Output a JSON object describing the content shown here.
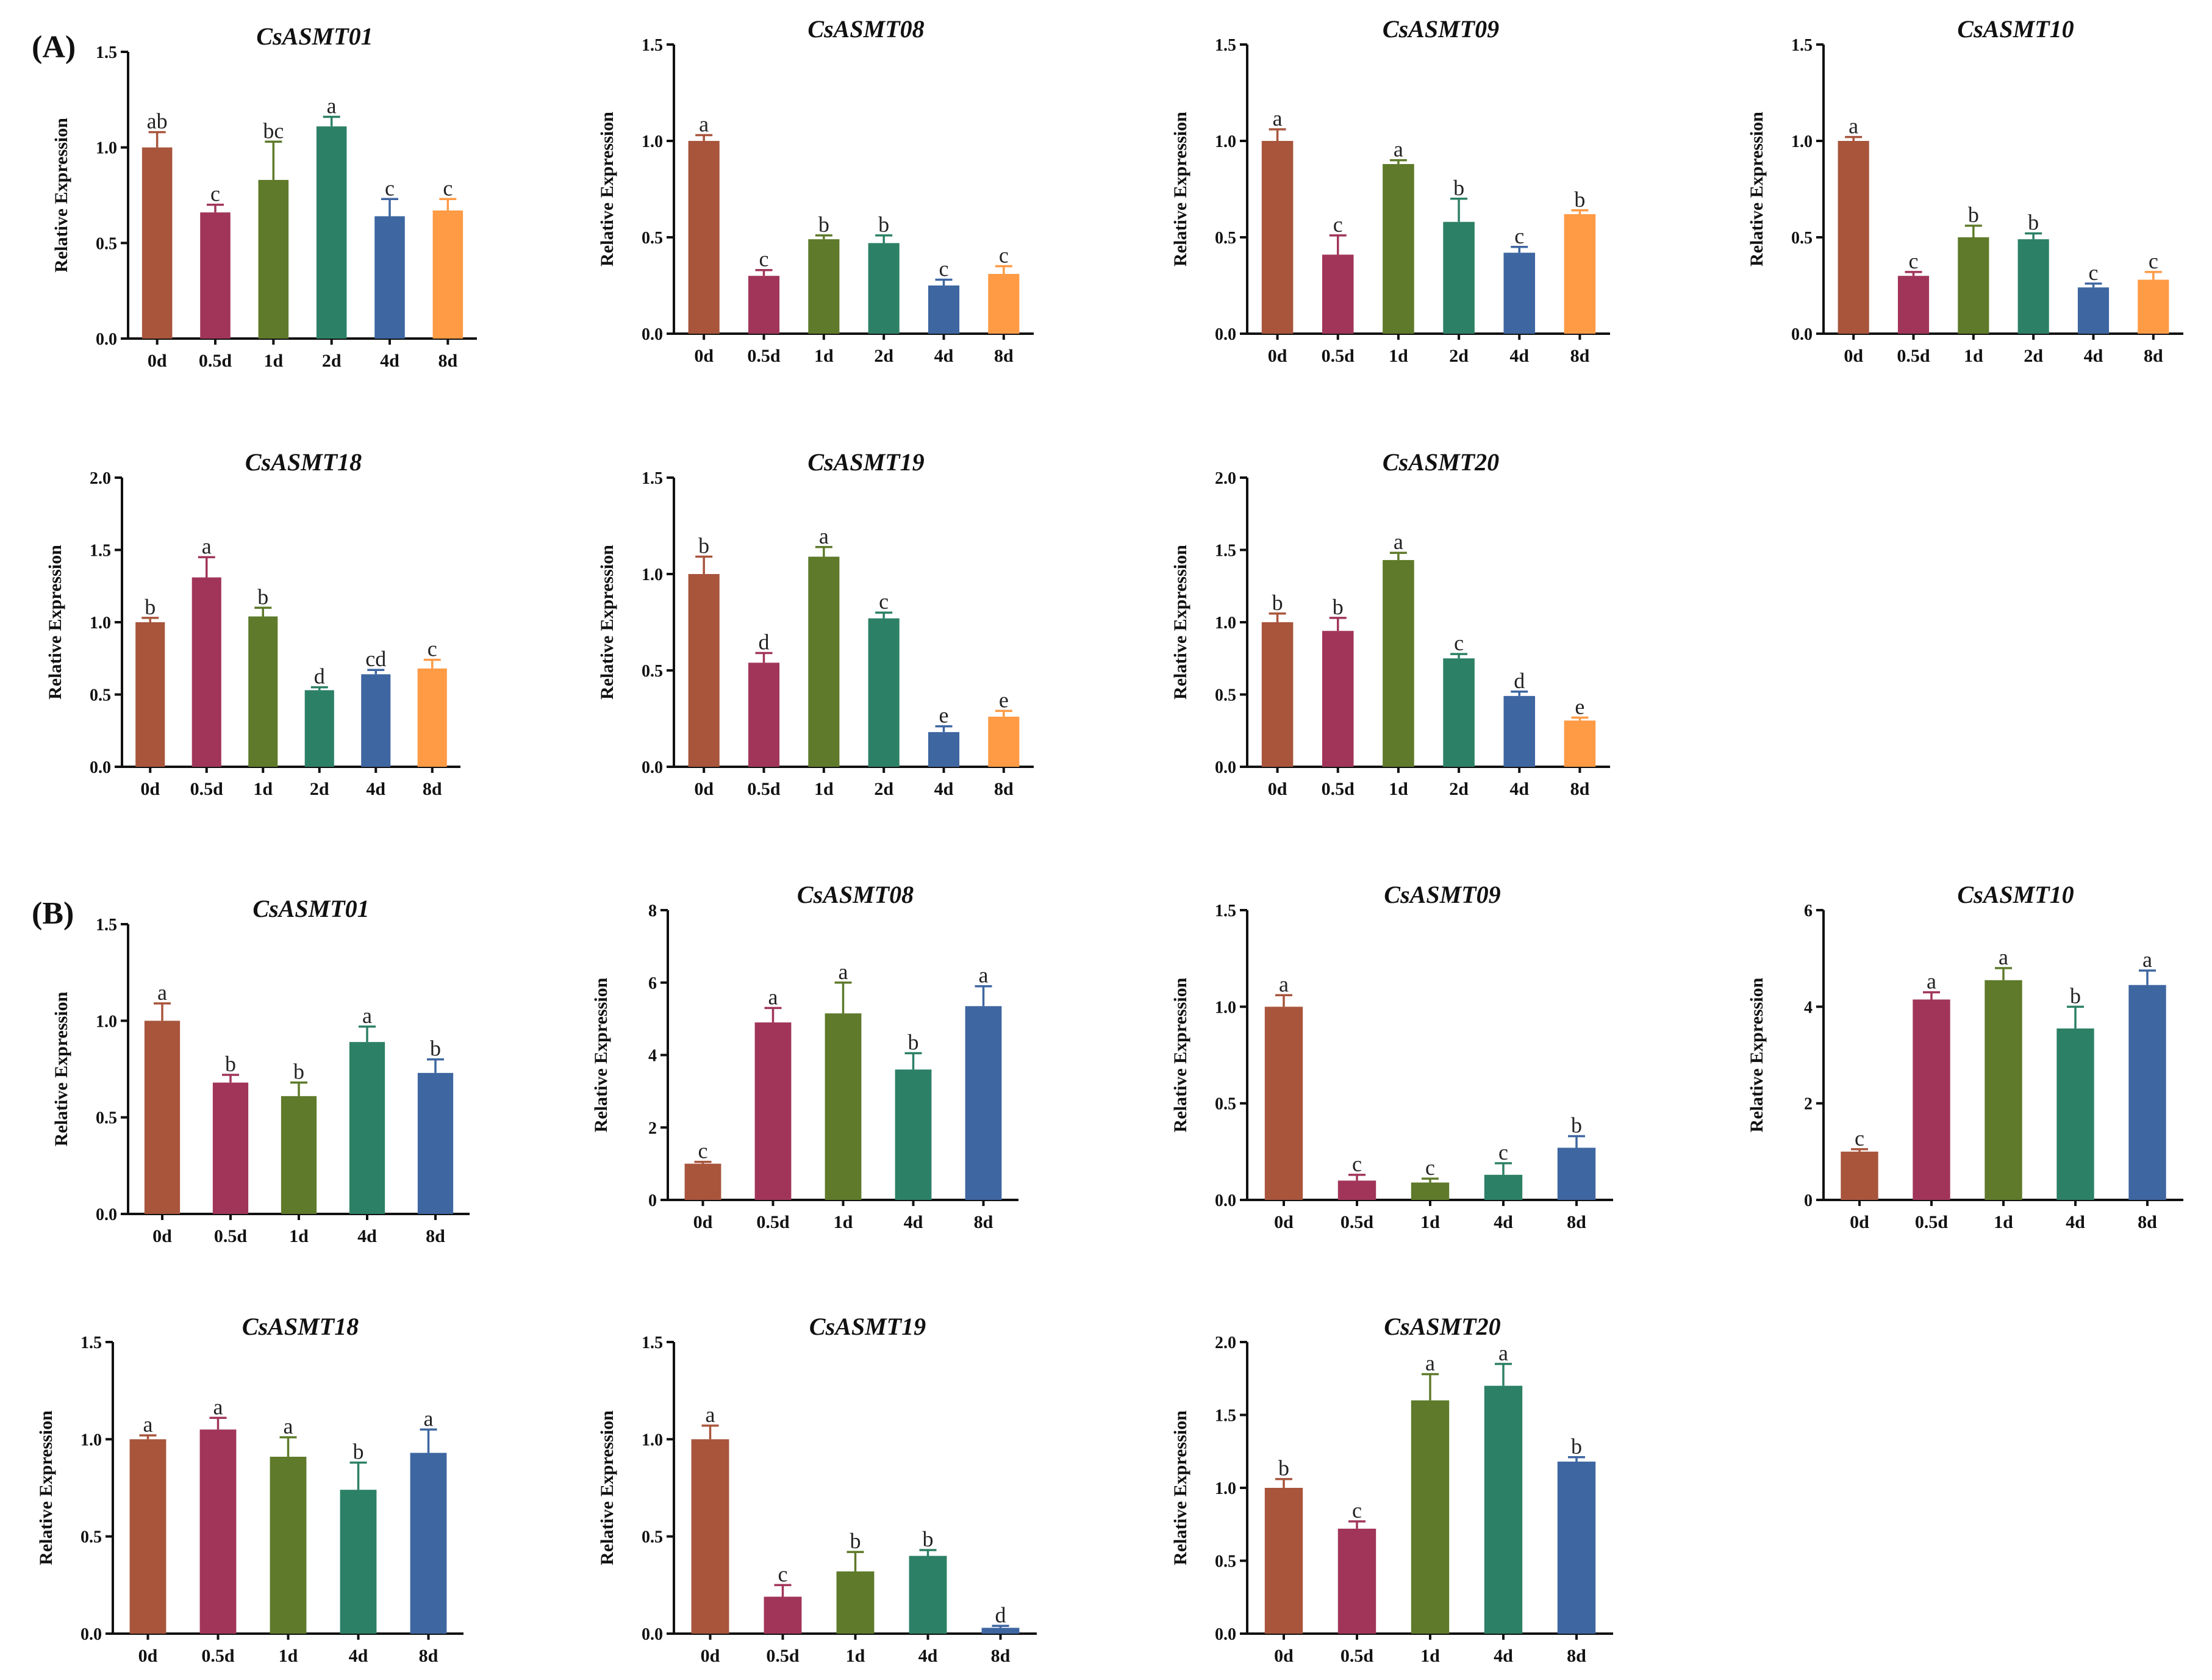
{
  "figure": {
    "panel_labels": [
      "(A)",
      "(B)"
    ],
    "ylabel": "Relative Expression"
  },
  "colors": {
    "0d": "#A8553C",
    "0.5d": "#A13559",
    "1d": "#5E7A2A",
    "2d": "#2C8066",
    "4d": "#3E66A1",
    "8d": "#FF9A45",
    "axis": "#111111"
  },
  "chart_data": [
    {
      "panel": "A",
      "type": "bar",
      "title": "CsASMT01",
      "ylabel": "Relative Expression",
      "ylim": [
        0,
        1.5
      ],
      "yticks": [
        "0.0",
        "0.5",
        "1.0",
        "1.5"
      ],
      "categories": [
        "0d",
        "0.5d",
        "1d",
        "2d",
        "4d",
        "8d"
      ],
      "colorKeys": [
        "0d",
        "0.5d",
        "1d",
        "2d",
        "4d",
        "8d"
      ],
      "values": [
        1.0,
        0.66,
        0.83,
        1.11,
        0.64,
        0.67
      ],
      "errors": [
        0.08,
        0.04,
        0.2,
        0.05,
        0.09,
        0.06
      ],
      "letters": [
        "ab",
        "c",
        "bc",
        "a",
        "c",
        "c"
      ]
    },
    {
      "panel": "A",
      "type": "bar",
      "title": "CsASMT08",
      "ylabel": "Relative Expression",
      "ylim": [
        0,
        1.5
      ],
      "yticks": [
        "0.0",
        "0.5",
        "1.0",
        "1.5"
      ],
      "categories": [
        "0d",
        "0.5d",
        "1d",
        "2d",
        "4d",
        "8d"
      ],
      "colorKeys": [
        "0d",
        "0.5d",
        "1d",
        "2d",
        "4d",
        "8d"
      ],
      "values": [
        1.0,
        0.3,
        0.49,
        0.47,
        0.25,
        0.31
      ],
      "errors": [
        0.03,
        0.03,
        0.02,
        0.04,
        0.03,
        0.04
      ],
      "letters": [
        "a",
        "c",
        "b",
        "b",
        "c",
        "c"
      ]
    },
    {
      "panel": "A",
      "type": "bar",
      "title": "CsASMT09",
      "ylabel": "Relative Expression",
      "ylim": [
        0,
        1.5
      ],
      "yticks": [
        "0.0",
        "0.5",
        "1.0",
        "1.5"
      ],
      "categories": [
        "0d",
        "0.5d",
        "1d",
        "2d",
        "4d",
        "8d"
      ],
      "colorKeys": [
        "0d",
        "0.5d",
        "1d",
        "2d",
        "4d",
        "8d"
      ],
      "values": [
        1.0,
        0.41,
        0.88,
        0.58,
        0.42,
        0.62
      ],
      "errors": [
        0.06,
        0.1,
        0.02,
        0.12,
        0.03,
        0.02
      ],
      "letters": [
        "a",
        "c",
        "a",
        "b",
        "c",
        "b"
      ]
    },
    {
      "panel": "A",
      "type": "bar",
      "title": "CsASMT10",
      "ylabel": "Relative Expression",
      "ylim": [
        0,
        1.5
      ],
      "yticks": [
        "0.0",
        "0.5",
        "1.0",
        "1.5"
      ],
      "categories": [
        "0d",
        "0.5d",
        "1d",
        "2d",
        "4d",
        "8d"
      ],
      "colorKeys": [
        "0d",
        "0.5d",
        "1d",
        "2d",
        "4d",
        "8d"
      ],
      "values": [
        1.0,
        0.3,
        0.5,
        0.49,
        0.24,
        0.28
      ],
      "errors": [
        0.02,
        0.02,
        0.06,
        0.03,
        0.02,
        0.04
      ],
      "letters": [
        "a",
        "c",
        "b",
        "b",
        "c",
        "c"
      ]
    },
    {
      "panel": "A",
      "type": "bar",
      "title": "CsASMT18",
      "ylabel": "Relative Expression",
      "ylim": [
        0,
        2.0
      ],
      "yticks": [
        "0.0",
        "0.5",
        "1.0",
        "1.5",
        "2.0"
      ],
      "categories": [
        "0d",
        "0.5d",
        "1d",
        "2d",
        "4d",
        "8d"
      ],
      "colorKeys": [
        "0d",
        "0.5d",
        "1d",
        "2d",
        "4d",
        "8d"
      ],
      "values": [
        1.0,
        1.31,
        1.04,
        0.53,
        0.64,
        0.68
      ],
      "errors": [
        0.03,
        0.14,
        0.06,
        0.02,
        0.03,
        0.06
      ],
      "letters": [
        "b",
        "a",
        "b",
        "d",
        "cd",
        "c"
      ]
    },
    {
      "panel": "A",
      "type": "bar",
      "title": "CsASMT19",
      "ylabel": "Relative Expression",
      "ylim": [
        0,
        1.5
      ],
      "yticks": [
        "0.0",
        "0.5",
        "1.0",
        "1.5"
      ],
      "categories": [
        "0d",
        "0.5d",
        "1d",
        "2d",
        "4d",
        "8d"
      ],
      "colorKeys": [
        "0d",
        "0.5d",
        "1d",
        "2d",
        "4d",
        "8d"
      ],
      "values": [
        1.0,
        0.54,
        1.09,
        0.77,
        0.18,
        0.26
      ],
      "errors": [
        0.09,
        0.05,
        0.05,
        0.03,
        0.03,
        0.03
      ],
      "letters": [
        "b",
        "d",
        "a",
        "c",
        "e",
        "e"
      ]
    },
    {
      "panel": "A",
      "type": "bar",
      "title": "CsASMT20",
      "ylabel": "Relative Expression",
      "ylim": [
        0,
        2.0
      ],
      "yticks": [
        "0.0",
        "0.5",
        "1.0",
        "1.5",
        "2.0"
      ],
      "categories": [
        "0d",
        "0.5d",
        "1d",
        "2d",
        "4d",
        "8d"
      ],
      "colorKeys": [
        "0d",
        "0.5d",
        "1d",
        "2d",
        "4d",
        "8d"
      ],
      "values": [
        1.0,
        0.94,
        1.43,
        0.75,
        0.49,
        0.32
      ],
      "errors": [
        0.06,
        0.09,
        0.05,
        0.03,
        0.03,
        0.02
      ],
      "letters": [
        "b",
        "b",
        "a",
        "c",
        "d",
        "e"
      ]
    },
    {
      "panel": "B",
      "type": "bar",
      "title": "CsASMT01",
      "ylabel": "Relative Expression",
      "ylim": [
        0,
        1.5
      ],
      "yticks": [
        "0.0",
        "0.5",
        "1.0",
        "1.5"
      ],
      "categories": [
        "0d",
        "0.5d",
        "1d",
        "4d",
        "8d"
      ],
      "colorKeys": [
        "0d",
        "0.5d",
        "1d",
        "2d",
        "4d"
      ],
      "values": [
        1.0,
        0.68,
        0.61,
        0.89,
        0.73
      ],
      "errors": [
        0.09,
        0.04,
        0.07,
        0.08,
        0.07
      ],
      "letters": [
        "a",
        "b",
        "b",
        "a",
        "b"
      ]
    },
    {
      "panel": "B",
      "type": "bar",
      "title": "CsASMT08",
      "ylabel": "Relative Expression",
      "ylim": [
        0,
        8
      ],
      "yticks": [
        "0",
        "2",
        "4",
        "6",
        "8"
      ],
      "categories": [
        "0d",
        "0.5d",
        "1d",
        "4d",
        "8d"
      ],
      "colorKeys": [
        "0d",
        "0.5d",
        "1d",
        "2d",
        "4d"
      ],
      "values": [
        1.0,
        4.9,
        5.15,
        3.6,
        5.35
      ],
      "errors": [
        0.05,
        0.4,
        0.85,
        0.45,
        0.55
      ],
      "letters": [
        "c",
        "a",
        "a",
        "b",
        "a"
      ]
    },
    {
      "panel": "B",
      "type": "bar",
      "title": "CsASMT09",
      "ylabel": "Relative Expression",
      "ylim": [
        0,
        1.5
      ],
      "yticks": [
        "0.0",
        "0.5",
        "1.0",
        "1.5"
      ],
      "categories": [
        "0d",
        "0.5d",
        "1d",
        "4d",
        "8d"
      ],
      "colorKeys": [
        "0d",
        "0.5d",
        "1d",
        "2d",
        "4d"
      ],
      "values": [
        1.0,
        0.1,
        0.09,
        0.13,
        0.27
      ],
      "errors": [
        0.06,
        0.03,
        0.02,
        0.06,
        0.06
      ],
      "letters": [
        "a",
        "c",
        "c",
        "c",
        "b"
      ]
    },
    {
      "panel": "B",
      "type": "bar",
      "title": "CsASMT10",
      "ylabel": "Relative Expression",
      "ylim": [
        0,
        6
      ],
      "yticks": [
        "0",
        "2",
        "4",
        "6"
      ],
      "categories": [
        "0d",
        "0.5d",
        "1d",
        "4d",
        "8d"
      ],
      "colorKeys": [
        "0d",
        "0.5d",
        "1d",
        "2d",
        "4d"
      ],
      "values": [
        1.0,
        4.15,
        4.55,
        3.55,
        4.45
      ],
      "errors": [
        0.05,
        0.15,
        0.25,
        0.45,
        0.3
      ],
      "letters": [
        "c",
        "a",
        "a",
        "b",
        "a"
      ]
    },
    {
      "panel": "B",
      "type": "bar",
      "title": "CsASMT18",
      "ylabel": "Relative Expression",
      "ylim": [
        0,
        1.5
      ],
      "yticks": [
        "0.0",
        "0.5",
        "1.0",
        "1.5"
      ],
      "categories": [
        "0d",
        "0.5d",
        "1d",
        "4d",
        "8d"
      ],
      "colorKeys": [
        "0d",
        "0.5d",
        "1d",
        "2d",
        "4d"
      ],
      "values": [
        1.0,
        1.05,
        0.91,
        0.74,
        0.93
      ],
      "errors": [
        0.02,
        0.06,
        0.1,
        0.14,
        0.12
      ],
      "letters": [
        "a",
        "a",
        "a",
        "b",
        "a"
      ]
    },
    {
      "panel": "B",
      "type": "bar",
      "title": "CsASMT19",
      "ylabel": "Relative Expression",
      "ylim": [
        0,
        1.5
      ],
      "yticks": [
        "0.0",
        "0.5",
        "1.0",
        "1.5"
      ],
      "categories": [
        "0d",
        "0.5d",
        "1d",
        "4d",
        "8d"
      ],
      "colorKeys": [
        "0d",
        "0.5d",
        "1d",
        "2d",
        "4d"
      ],
      "values": [
        1.0,
        0.19,
        0.32,
        0.4,
        0.03
      ],
      "errors": [
        0.07,
        0.06,
        0.1,
        0.03,
        0.01
      ],
      "letters": [
        "a",
        "c",
        "b",
        "b",
        "d"
      ]
    },
    {
      "panel": "B",
      "type": "bar",
      "title": "CsASMT20",
      "ylabel": "Relative Expression",
      "ylim": [
        0,
        2.0
      ],
      "yticks": [
        "0.0",
        "0.5",
        "1.0",
        "1.5",
        "2.0"
      ],
      "categories": [
        "0d",
        "0.5d",
        "1d",
        "4d",
        "8d"
      ],
      "colorKeys": [
        "0d",
        "0.5d",
        "1d",
        "2d",
        "4d"
      ],
      "values": [
        1.0,
        0.72,
        1.6,
        1.7,
        1.18
      ],
      "errors": [
        0.06,
        0.05,
        0.18,
        0.15,
        0.03
      ],
      "letters": [
        "b",
        "c",
        "a",
        "a",
        "b"
      ]
    }
  ]
}
